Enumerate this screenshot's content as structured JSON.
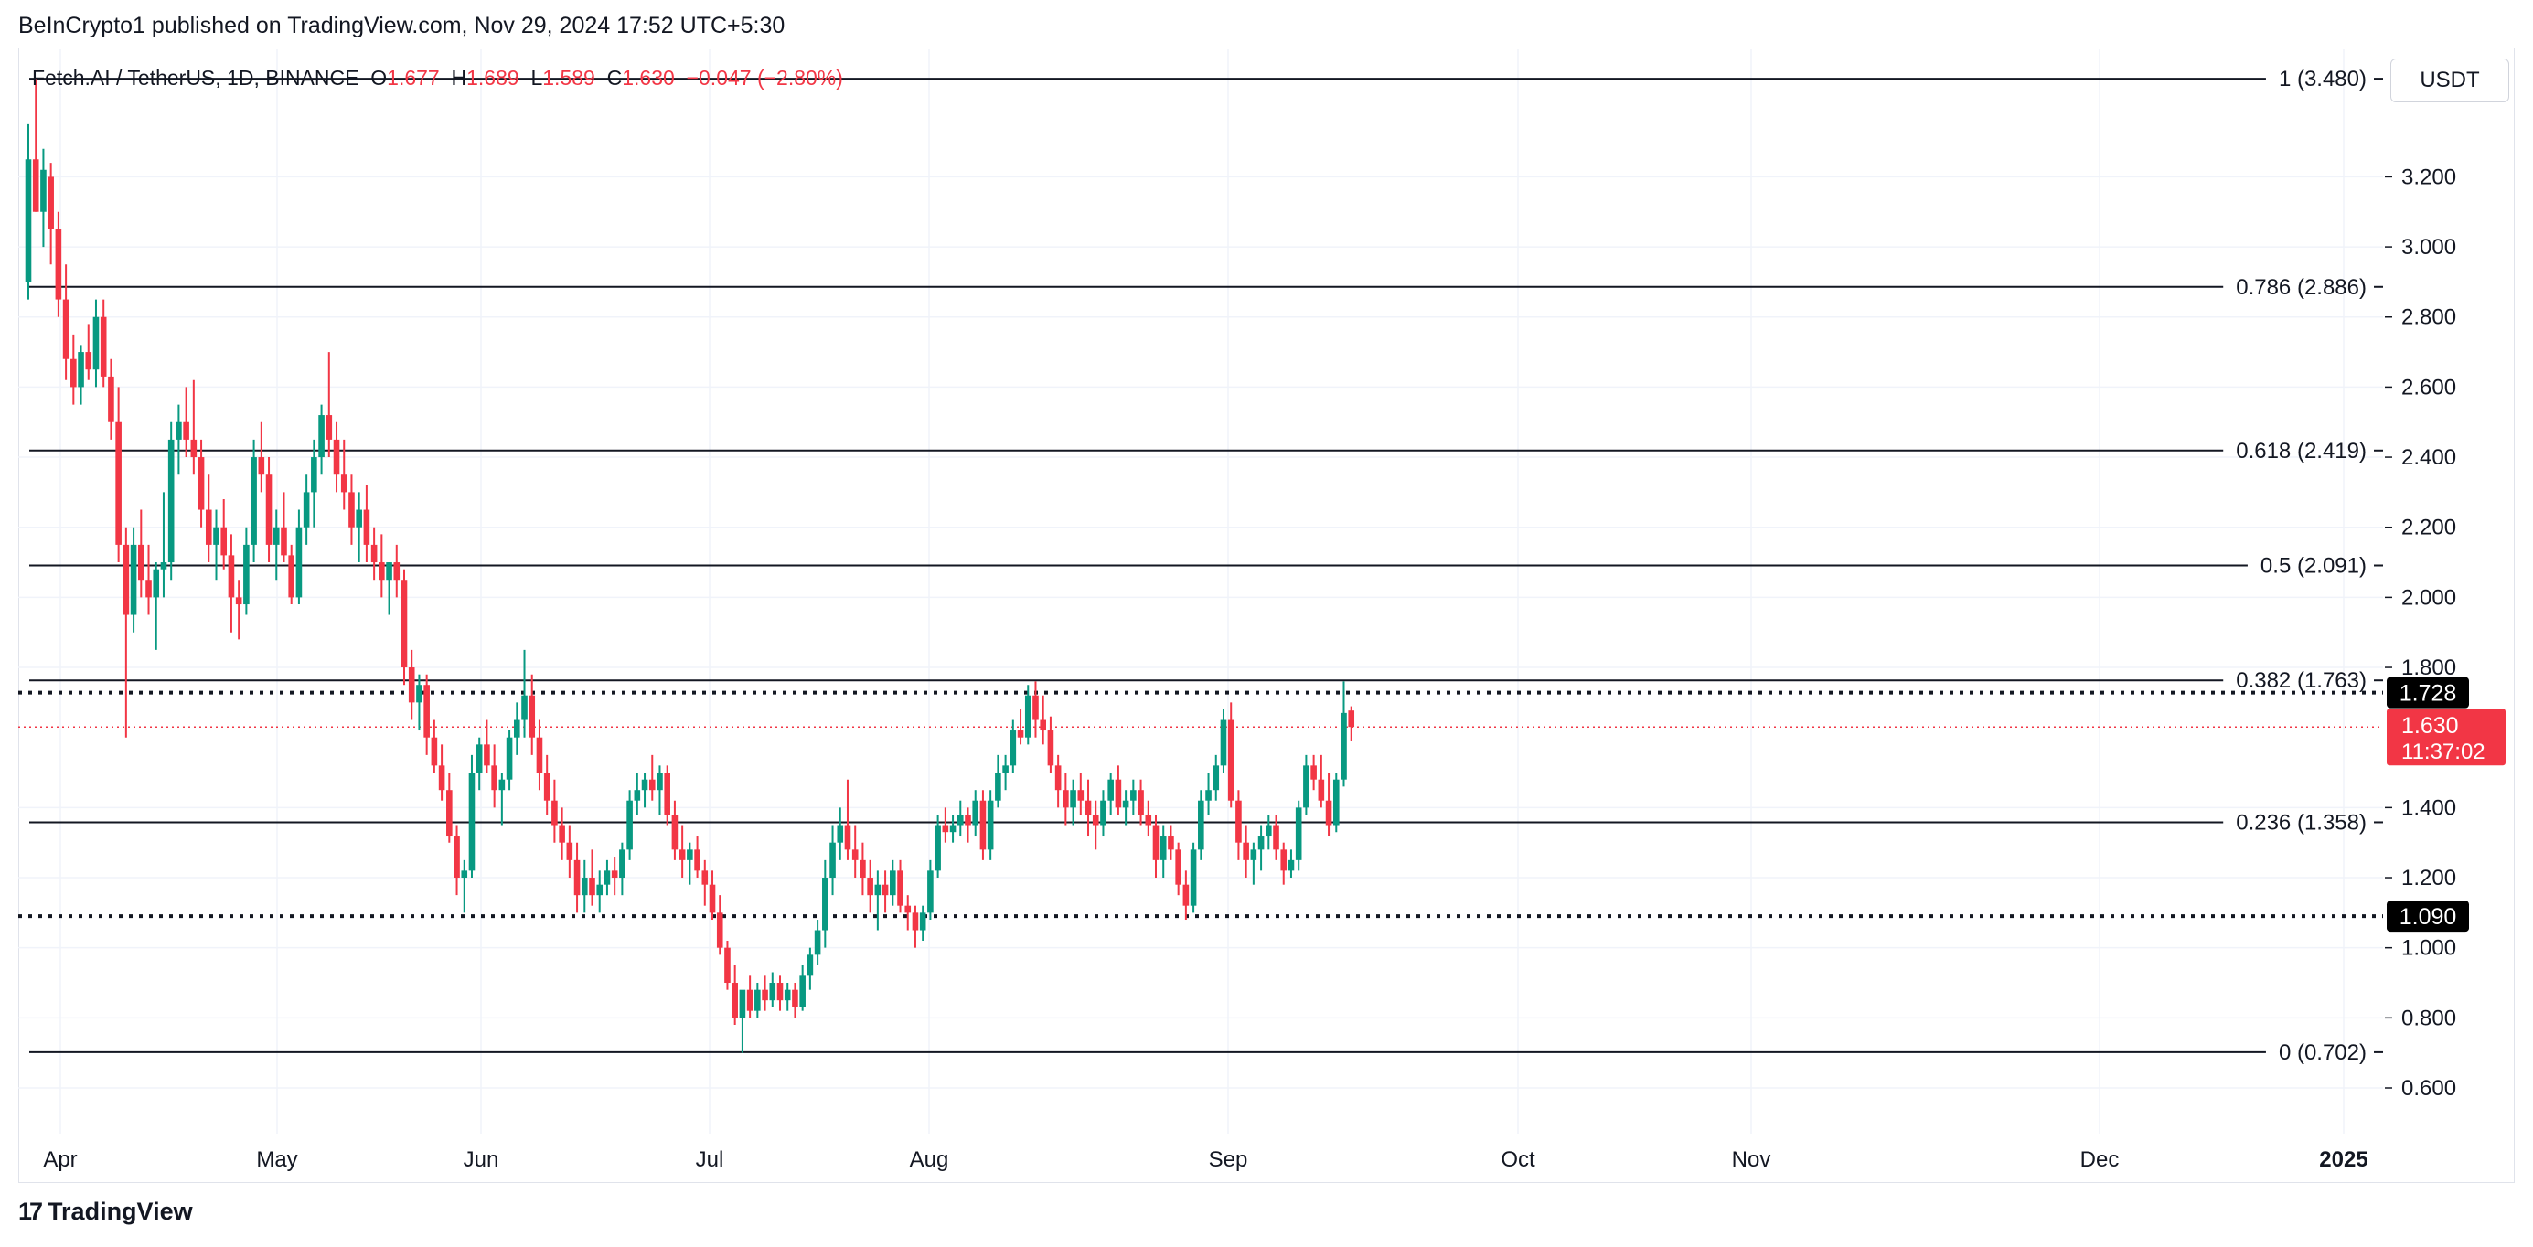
{
  "publisher": "BeInCrypto1 published on TradingView.com, Nov 29, 2024 17:52 UTC+5:30",
  "symbol_header": {
    "name": "Fetch.AI / TetherUS, 1D, BINANCE",
    "o_label": "O",
    "o_value": "1.677",
    "h_label": "H",
    "h_value": "1.689",
    "l_label": "L",
    "l_value": "1.589",
    "c_label": "C",
    "c_value": "1.630",
    "change": "−0.047 (−2.80%)"
  },
  "currency_button": "USDT",
  "brand": "TradingView",
  "colors": {
    "up": "#089981",
    "down": "#f23645",
    "line": "#131722",
    "grid": "#f0f3fa"
  },
  "chart_data": {
    "type": "candlestick",
    "title": "Fetch.AI / TetherUS, 1D, BINANCE",
    "x_tick_labels": [
      "Apr",
      "May",
      "Jun",
      "Jul",
      "Aug",
      "Sep",
      "Oct",
      "Nov",
      "Dec",
      "2025"
    ],
    "y_tick_labels": [
      "0.600",
      "0.800",
      "1.000",
      "1.200",
      "1.400",
      "1.800",
      "2.000",
      "2.200",
      "2.400",
      "2.600",
      "2.800",
      "3.000",
      "3.200"
    ],
    "ylim": [
      0.5,
      3.5
    ],
    "grid": true,
    "fib_levels": [
      {
        "label": "1 (3.480)",
        "value": 3.48
      },
      {
        "label": "0.786 (2.886)",
        "value": 2.886
      },
      {
        "label": "0.618 (2.419)",
        "value": 2.419
      },
      {
        "label": "0.5 (2.091)",
        "value": 2.091
      },
      {
        "label": "0.382 (1.763)",
        "value": 1.763
      },
      {
        "label": "0.236 (1.358)",
        "value": 1.358
      },
      {
        "label": "0 (0.702)",
        "value": 0.702
      }
    ],
    "dotted_levels": [
      {
        "label": "1.728",
        "value": 1.728
      },
      {
        "label": "1.090",
        "value": 1.09
      }
    ],
    "current_price": {
      "label": "1.630",
      "countdown": "11:37:02",
      "value": 1.63
    },
    "candles_ohlc": [
      [
        2.9,
        3.35,
        2.85,
        3.25
      ],
      [
        3.25,
        3.48,
        3.1,
        3.1
      ],
      [
        3.1,
        3.28,
        3.0,
        3.22
      ],
      [
        3.2,
        3.24,
        2.95,
        3.05
      ],
      [
        3.05,
        3.1,
        2.8,
        2.85
      ],
      [
        2.85,
        2.95,
        2.62,
        2.68
      ],
      [
        2.68,
        2.75,
        2.55,
        2.6
      ],
      [
        2.6,
        2.72,
        2.55,
        2.7
      ],
      [
        2.7,
        2.78,
        2.62,
        2.65
      ],
      [
        2.65,
        2.85,
        2.6,
        2.8
      ],
      [
        2.8,
        2.85,
        2.6,
        2.63
      ],
      [
        2.63,
        2.68,
        2.45,
        2.5
      ],
      [
        2.5,
        2.6,
        2.1,
        2.15
      ],
      [
        2.15,
        2.2,
        1.6,
        1.95
      ],
      [
        1.95,
        2.2,
        1.9,
        2.15
      ],
      [
        2.15,
        2.25,
        2.0,
        2.05
      ],
      [
        2.05,
        2.15,
        1.95,
        2.0
      ],
      [
        2.0,
        2.1,
        1.85,
        2.08
      ],
      [
        2.08,
        2.3,
        2.0,
        2.1
      ],
      [
        2.1,
        2.5,
        2.05,
        2.45
      ],
      [
        2.45,
        2.55,
        2.35,
        2.5
      ],
      [
        2.5,
        2.6,
        2.4,
        2.45
      ],
      [
        2.45,
        2.62,
        2.35,
        2.4
      ],
      [
        2.4,
        2.45,
        2.2,
        2.25
      ],
      [
        2.25,
        2.35,
        2.1,
        2.15
      ],
      [
        2.15,
        2.25,
        2.05,
        2.2
      ],
      [
        2.2,
        2.28,
        2.08,
        2.12
      ],
      [
        2.12,
        2.18,
        1.9,
        2.0
      ],
      [
        2.0,
        2.05,
        1.88,
        1.98
      ],
      [
        1.98,
        2.2,
        1.95,
        2.15
      ],
      [
        2.15,
        2.45,
        2.1,
        2.4
      ],
      [
        2.4,
        2.5,
        2.3,
        2.35
      ],
      [
        2.35,
        2.4,
        2.1,
        2.15
      ],
      [
        2.15,
        2.25,
        2.05,
        2.2
      ],
      [
        2.2,
        2.3,
        2.1,
        2.12
      ],
      [
        2.12,
        2.15,
        1.98,
        2.0
      ],
      [
        2.0,
        2.25,
        1.98,
        2.2
      ],
      [
        2.2,
        2.35,
        2.15,
        2.3
      ],
      [
        2.3,
        2.45,
        2.2,
        2.4
      ],
      [
        2.4,
        2.55,
        2.35,
        2.52
      ],
      [
        2.52,
        2.7,
        2.4,
        2.45
      ],
      [
        2.45,
        2.5,
        2.3,
        2.35
      ],
      [
        2.35,
        2.45,
        2.25,
        2.3
      ],
      [
        2.3,
        2.35,
        2.15,
        2.2
      ],
      [
        2.2,
        2.3,
        2.1,
        2.25
      ],
      [
        2.25,
        2.32,
        2.1,
        2.15
      ],
      [
        2.15,
        2.2,
        2.05,
        2.1
      ],
      [
        2.1,
        2.18,
        2.0,
        2.05
      ],
      [
        2.05,
        2.1,
        1.95,
        2.1
      ],
      [
        2.1,
        2.15,
        2.0,
        2.05
      ],
      [
        2.05,
        2.08,
        1.75,
        1.8
      ],
      [
        1.8,
        1.85,
        1.65,
        1.7
      ],
      [
        1.7,
        1.78,
        1.62,
        1.75
      ],
      [
        1.75,
        1.78,
        1.55,
        1.6
      ],
      [
        1.6,
        1.65,
        1.5,
        1.52
      ],
      [
        1.52,
        1.58,
        1.42,
        1.45
      ],
      [
        1.45,
        1.5,
        1.3,
        1.32
      ],
      [
        1.32,
        1.35,
        1.15,
        1.2
      ],
      [
        1.2,
        1.25,
        1.1,
        1.22
      ],
      [
        1.22,
        1.55,
        1.2,
        1.5
      ],
      [
        1.5,
        1.6,
        1.45,
        1.58
      ],
      [
        1.58,
        1.65,
        1.5,
        1.52
      ],
      [
        1.52,
        1.58,
        1.4,
        1.45
      ],
      [
        1.45,
        1.5,
        1.35,
        1.48
      ],
      [
        1.48,
        1.62,
        1.45,
        1.6
      ],
      [
        1.6,
        1.7,
        1.55,
        1.65
      ],
      [
        1.65,
        1.85,
        1.6,
        1.72
      ],
      [
        1.72,
        1.78,
        1.55,
        1.6
      ],
      [
        1.6,
        1.65,
        1.45,
        1.5
      ],
      [
        1.5,
        1.55,
        1.38,
        1.42
      ],
      [
        1.42,
        1.48,
        1.3,
        1.35
      ],
      [
        1.35,
        1.4,
        1.25,
        1.3
      ],
      [
        1.3,
        1.35,
        1.2,
        1.25
      ],
      [
        1.25,
        1.3,
        1.1,
        1.15
      ],
      [
        1.15,
        1.25,
        1.1,
        1.2
      ],
      [
        1.2,
        1.28,
        1.12,
        1.15
      ],
      [
        1.15,
        1.22,
        1.1,
        1.18
      ],
      [
        1.18,
        1.25,
        1.15,
        1.22
      ],
      [
        1.22,
        1.26,
        1.15,
        1.2
      ],
      [
        1.2,
        1.3,
        1.15,
        1.28
      ],
      [
        1.28,
        1.45,
        1.25,
        1.42
      ],
      [
        1.42,
        1.5,
        1.38,
        1.45
      ],
      [
        1.45,
        1.5,
        1.4,
        1.48
      ],
      [
        1.48,
        1.55,
        1.42,
        1.45
      ],
      [
        1.45,
        1.52,
        1.38,
        1.5
      ],
      [
        1.5,
        1.52,
        1.35,
        1.38
      ],
      [
        1.38,
        1.42,
        1.25,
        1.28
      ],
      [
        1.28,
        1.35,
        1.2,
        1.25
      ],
      [
        1.25,
        1.3,
        1.18,
        1.28
      ],
      [
        1.28,
        1.32,
        1.2,
        1.22
      ],
      [
        1.22,
        1.25,
        1.12,
        1.18
      ],
      [
        1.18,
        1.22,
        1.08,
        1.1
      ],
      [
        1.1,
        1.15,
        0.98,
        1.0
      ],
      [
        1.0,
        1.02,
        0.88,
        0.9
      ],
      [
        0.9,
        0.95,
        0.78,
        0.8
      ],
      [
        0.8,
        0.82,
        0.7,
        0.88
      ],
      [
        0.88,
        0.92,
        0.8,
        0.82
      ],
      [
        0.82,
        0.9,
        0.8,
        0.88
      ],
      [
        0.88,
        0.92,
        0.82,
        0.85
      ],
      [
        0.85,
        0.93,
        0.83,
        0.9
      ],
      [
        0.9,
        0.92,
        0.82,
        0.85
      ],
      [
        0.85,
        0.9,
        0.82,
        0.88
      ],
      [
        0.88,
        0.9,
        0.8,
        0.83
      ],
      [
        0.83,
        0.95,
        0.82,
        0.92
      ],
      [
        0.92,
        1.0,
        0.88,
        0.98
      ],
      [
        0.98,
        1.08,
        0.95,
        1.05
      ],
      [
        1.05,
        1.25,
        1.0,
        1.2
      ],
      [
        1.2,
        1.35,
        1.15,
        1.3
      ],
      [
        1.3,
        1.4,
        1.25,
        1.35
      ],
      [
        1.35,
        1.48,
        1.25,
        1.28
      ],
      [
        1.28,
        1.35,
        1.2,
        1.25
      ],
      [
        1.25,
        1.3,
        1.15,
        1.2
      ],
      [
        1.2,
        1.25,
        1.1,
        1.15
      ],
      [
        1.15,
        1.22,
        1.05,
        1.18
      ],
      [
        1.18,
        1.22,
        1.1,
        1.15
      ],
      [
        1.15,
        1.25,
        1.12,
        1.22
      ],
      [
        1.22,
        1.25,
        1.1,
        1.12
      ],
      [
        1.12,
        1.15,
        1.05,
        1.1
      ],
      [
        1.1,
        1.12,
        1.0,
        1.05
      ],
      [
        1.05,
        1.12,
        1.02,
        1.1
      ],
      [
        1.1,
        1.25,
        1.08,
        1.22
      ],
      [
        1.22,
        1.38,
        1.2,
        1.35
      ],
      [
        1.35,
        1.4,
        1.3,
        1.33
      ],
      [
        1.33,
        1.38,
        1.3,
        1.35
      ],
      [
        1.35,
        1.42,
        1.32,
        1.38
      ],
      [
        1.38,
        1.4,
        1.3,
        1.35
      ],
      [
        1.35,
        1.45,
        1.32,
        1.42
      ],
      [
        1.42,
        1.45,
        1.25,
        1.28
      ],
      [
        1.28,
        1.45,
        1.25,
        1.42
      ],
      [
        1.42,
        1.55,
        1.4,
        1.5
      ],
      [
        1.5,
        1.55,
        1.45,
        1.52
      ],
      [
        1.52,
        1.65,
        1.5,
        1.62
      ],
      [
        1.62,
        1.68,
        1.58,
        1.6
      ],
      [
        1.6,
        1.75,
        1.58,
        1.72
      ],
      [
        1.72,
        1.76,
        1.6,
        1.65
      ],
      [
        1.65,
        1.72,
        1.58,
        1.62
      ],
      [
        1.62,
        1.66,
        1.5,
        1.52
      ],
      [
        1.52,
        1.55,
        1.4,
        1.45
      ],
      [
        1.45,
        1.5,
        1.35,
        1.4
      ],
      [
        1.4,
        1.48,
        1.35,
        1.45
      ],
      [
        1.45,
        1.5,
        1.38,
        1.42
      ],
      [
        1.42,
        1.48,
        1.32,
        1.38
      ],
      [
        1.38,
        1.42,
        1.28,
        1.35
      ],
      [
        1.35,
        1.45,
        1.32,
        1.42
      ],
      [
        1.42,
        1.5,
        1.38,
        1.48
      ],
      [
        1.48,
        1.52,
        1.38,
        1.4
      ],
      [
        1.4,
        1.45,
        1.35,
        1.42
      ],
      [
        1.42,
        1.48,
        1.38,
        1.45
      ],
      [
        1.45,
        1.48,
        1.35,
        1.38
      ],
      [
        1.38,
        1.42,
        1.32,
        1.35
      ],
      [
        1.35,
        1.38,
        1.2,
        1.25
      ],
      [
        1.25,
        1.35,
        1.2,
        1.32
      ],
      [
        1.32,
        1.35,
        1.25,
        1.28
      ],
      [
        1.28,
        1.3,
        1.15,
        1.18
      ],
      [
        1.18,
        1.22,
        1.08,
        1.12
      ],
      [
        1.12,
        1.3,
        1.1,
        1.28
      ],
      [
        1.28,
        1.45,
        1.25,
        1.42
      ],
      [
        1.42,
        1.5,
        1.38,
        1.45
      ],
      [
        1.45,
        1.55,
        1.42,
        1.52
      ],
      [
        1.52,
        1.68,
        1.5,
        1.65
      ],
      [
        1.65,
        1.7,
        1.4,
        1.42
      ],
      [
        1.42,
        1.45,
        1.25,
        1.3
      ],
      [
        1.3,
        1.35,
        1.2,
        1.25
      ],
      [
        1.25,
        1.3,
        1.18,
        1.28
      ],
      [
        1.28,
        1.35,
        1.22,
        1.32
      ],
      [
        1.32,
        1.38,
        1.28,
        1.35
      ],
      [
        1.35,
        1.38,
        1.25,
        1.28
      ],
      [
        1.28,
        1.3,
        1.18,
        1.22
      ],
      [
        1.22,
        1.28,
        1.2,
        1.25
      ],
      [
        1.25,
        1.42,
        1.22,
        1.4
      ],
      [
        1.4,
        1.55,
        1.38,
        1.52
      ],
      [
        1.52,
        1.55,
        1.45,
        1.48
      ],
      [
        1.48,
        1.55,
        1.4,
        1.42
      ],
      [
        1.42,
        1.5,
        1.32,
        1.35
      ],
      [
        1.35,
        1.5,
        1.33,
        1.48
      ],
      [
        1.48,
        1.76,
        1.46,
        1.67
      ],
      [
        1.677,
        1.689,
        1.589,
        1.63
      ]
    ]
  }
}
